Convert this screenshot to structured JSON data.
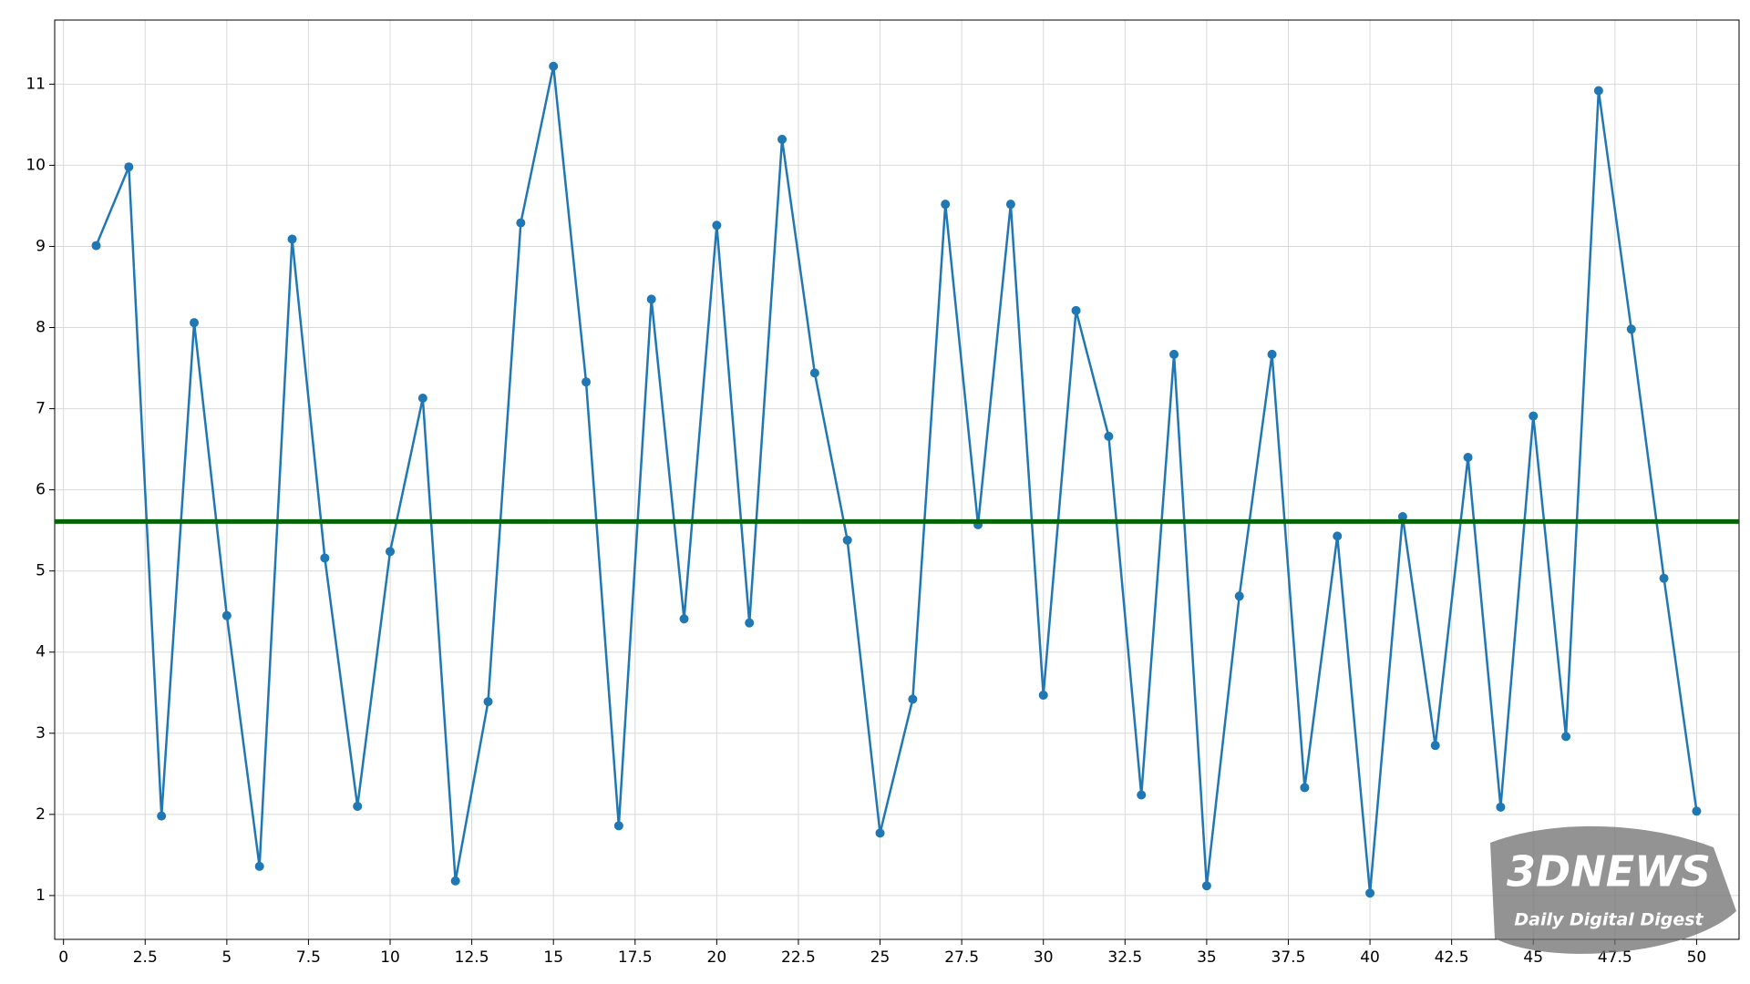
{
  "chart_data": {
    "type": "line",
    "x": [
      1,
      2,
      3,
      4,
      5,
      6,
      7,
      8,
      9,
      10,
      11,
      12,
      13,
      14,
      15,
      16,
      17,
      18,
      19,
      20,
      21,
      22,
      23,
      24,
      25,
      26,
      27,
      28,
      29,
      30,
      31,
      32,
      33,
      34,
      35,
      36,
      37,
      38,
      39,
      40,
      41,
      42,
      43,
      44,
      45,
      46,
      47,
      48,
      49,
      50
    ],
    "series": [
      {
        "color": "#1f77b4",
        "values": [
          9.01,
          9.98,
          1.98,
          8.06,
          4.45,
          1.36,
          9.09,
          5.16,
          2.1,
          5.24,
          7.13,
          1.18,
          3.39,
          9.29,
          11.22,
          7.33,
          1.86,
          8.35,
          4.41,
          9.26,
          4.36,
          10.32,
          7.44,
          5.38,
          1.77,
          3.42,
          9.52,
          5.57,
          9.52,
          3.47,
          8.21,
          6.66,
          2.24,
          7.67,
          1.12,
          4.69,
          7.67,
          2.33,
          5.43,
          1.03,
          5.67,
          2.85,
          6.4,
          2.09,
          6.91,
          2.96,
          10.92,
          7.98,
          4.91,
          2.04
        ]
      }
    ],
    "hline": {
      "value": 5.61,
      "color": "#006400"
    },
    "xlim": [
      -0.27,
      51.3
    ],
    "xticks": [
      0,
      2.5,
      5,
      7.5,
      10,
      12.5,
      15,
      17.5,
      20,
      22.5,
      25,
      27.5,
      30,
      32.5,
      35,
      37.5,
      40,
      42.5,
      45,
      47.5,
      50
    ],
    "ylim": [
      0.46,
      11.79
    ],
    "yticks": [
      1,
      2,
      3,
      4,
      5,
      6,
      7,
      8,
      9,
      10,
      11
    ],
    "grid": true,
    "watermark": {
      "logo": "3DNEWS",
      "tagline": "Daily Digital Digest"
    }
  }
}
